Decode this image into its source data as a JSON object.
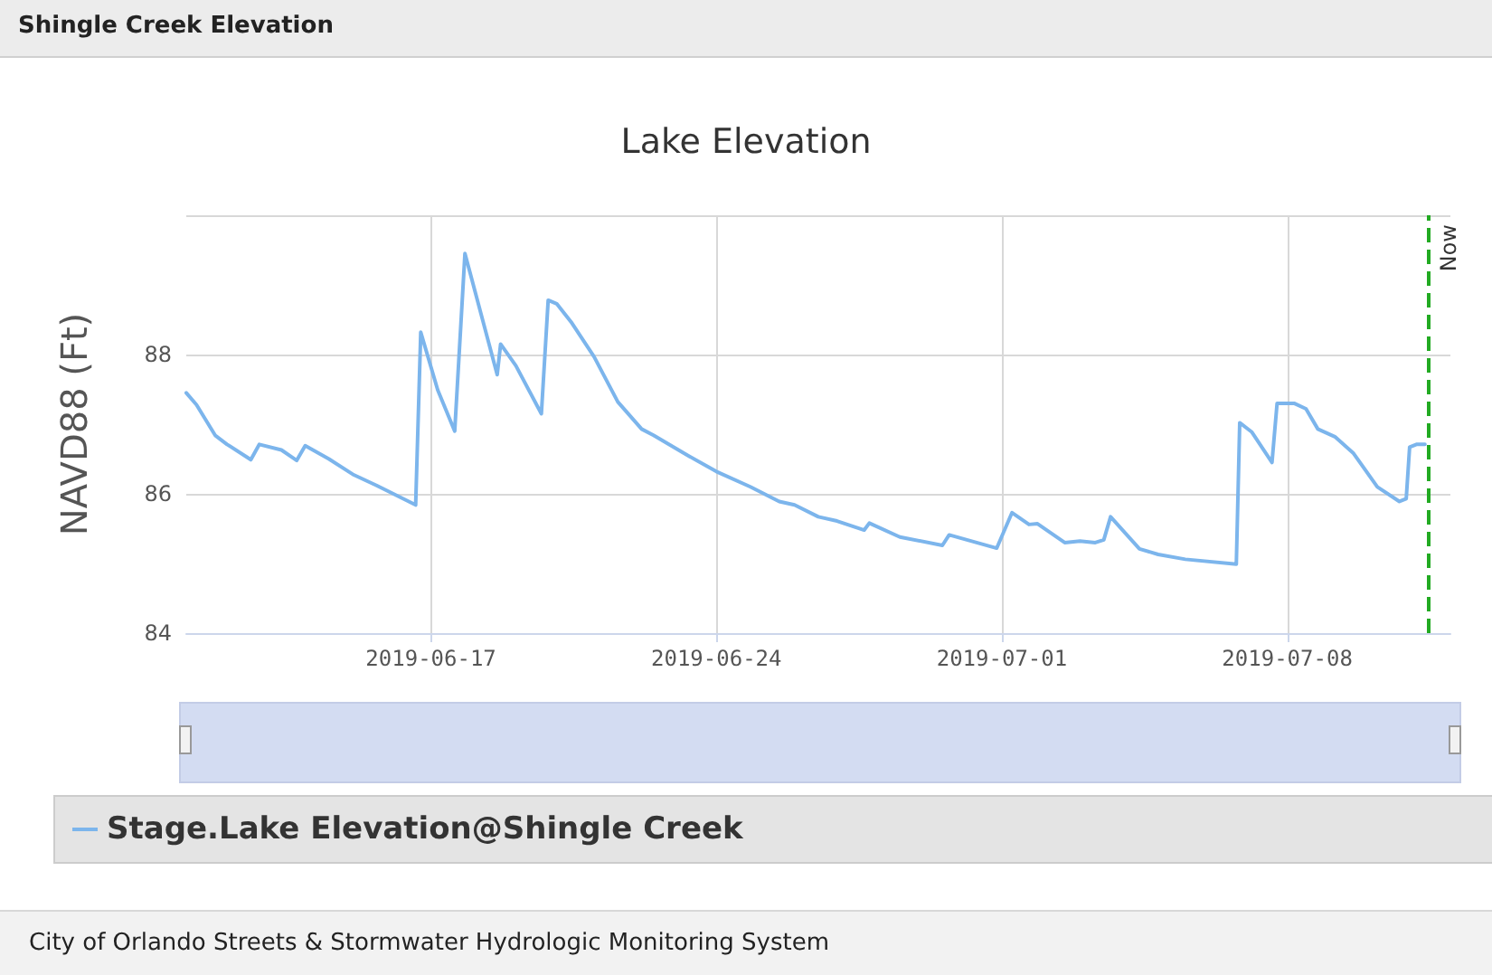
{
  "chart_data": {
    "type": "line",
    "title": "Lake Elevation",
    "ylabel": "NAVD88 (Ft)",
    "annotations": [
      "Shingle Creek Elevation",
      "City of Orlando Streets & Stormwater Hydrologic Monitoring System"
    ],
    "x": [
      "2019-06-11T00:00",
      "2019-06-11T06:00",
      "2019-06-11T17:00",
      "2019-06-12T00:00",
      "2019-06-12T14:00",
      "2019-06-12T19:00",
      "2019-06-13T08:00",
      "2019-06-13T17:00",
      "2019-06-13T22:00",
      "2019-06-14T12:00",
      "2019-06-15T02:00",
      "2019-06-15T16:00",
      "2019-06-16T15:00",
      "2019-06-16T18:00",
      "2019-06-17T04:00",
      "2019-06-17T14:00",
      "2019-06-17T20:00",
      "2019-06-18T15:00",
      "2019-06-18T17:00",
      "2019-06-19T02:00",
      "2019-06-19T17:00",
      "2019-06-19T21:00",
      "2019-06-20T02:00",
      "2019-06-20T11:00",
      "2019-06-21T00:00",
      "2019-06-21T14:00",
      "2019-06-22T04:00",
      "2019-06-22T11:00",
      "2019-06-23T08:00",
      "2019-06-24T00:00",
      "2019-06-24T20:00",
      "2019-06-25T13:00",
      "2019-06-25T22:00",
      "2019-06-26T12:00",
      "2019-06-26T23:00",
      "2019-06-27T15:00",
      "2019-06-27T18:00",
      "2019-06-28T12:00",
      "2019-06-29T13:00",
      "2019-06-29T17:00",
      "2019-06-30T21:00",
      "2019-07-01T06:00",
      "2019-07-01T16:00",
      "2019-07-01T21:00",
      "2019-07-02T13:00",
      "2019-07-02T22:00",
      "2019-07-03T07:00",
      "2019-07-03T12:00",
      "2019-07-03T16:00",
      "2019-07-04T09:00",
      "2019-07-04T20:00",
      "2019-07-05T12:00",
      "2019-07-06T18:00",
      "2019-07-06T20:00",
      "2019-07-07T03:00",
      "2019-07-07T15:00",
      "2019-07-07T18:00",
      "2019-07-08T04:00",
      "2019-07-08T11:00",
      "2019-07-08T18:00",
      "2019-07-09T04:00",
      "2019-07-09T15:00",
      "2019-07-10T05:00",
      "2019-07-10T18:00",
      "2019-07-10T22:00",
      "2019-07-11T00:00",
      "2019-07-11T04:00",
      "2019-07-11T09:00"
    ],
    "series": [
      {
        "name": "Stage.Lake Elevation@Shingle Creek",
        "color": "#7cb5ec",
        "values": [
          87.45,
          87.28,
          86.84,
          86.71,
          86.49,
          86.71,
          86.63,
          86.48,
          86.69,
          86.5,
          86.28,
          86.12,
          85.84,
          88.32,
          87.49,
          86.9,
          89.45,
          87.71,
          88.15,
          87.84,
          87.15,
          88.78,
          88.73,
          88.45,
          87.97,
          87.32,
          86.93,
          86.84,
          86.54,
          86.32,
          86.1,
          85.89,
          85.84,
          85.67,
          85.61,
          85.48,
          85.58,
          85.38,
          85.26,
          85.41,
          85.22,
          85.73,
          85.56,
          85.57,
          85.3,
          85.32,
          85.3,
          85.34,
          85.67,
          85.21,
          85.13,
          85.06,
          84.99,
          87.02,
          86.89,
          86.45,
          87.3,
          87.3,
          87.22,
          86.93,
          86.82,
          86.58,
          86.1,
          85.89,
          85.93,
          86.67,
          86.71,
          86.71
        ]
      }
    ],
    "xlim": [
      "2019-06-11",
      "2019-07-12"
    ],
    "xticks": [
      "2019-06-17",
      "2019-06-24",
      "2019-07-01",
      "2019-07-08"
    ],
    "ylim": [
      84,
      90
    ],
    "yticks": [
      84,
      86,
      88,
      {
        "value": 90,
        "label": null
      }
    ],
    "ref_lines": [
      {
        "axis": "x",
        "value": "2019-07-11T11:00",
        "label": "Now",
        "color": "#22aa22",
        "line_style": "dashed"
      }
    ],
    "grid": true,
    "legend": "bottom",
    "marker": "none",
    "line_style": "solid"
  }
}
